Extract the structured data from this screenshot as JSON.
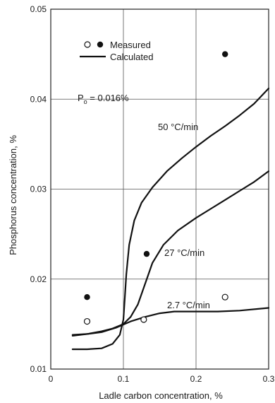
{
  "chart_data": {
    "type": "scatter",
    "title": "",
    "xlabel": "Ladle carbon concentration, %",
    "ylabel": "Phosphorus concentration, %",
    "xlim": [
      0,
      0.3
    ],
    "ylim": [
      0.01,
      0.05
    ],
    "x_ticks": [
      "0",
      "0.1",
      "0.2",
      "0.3"
    ],
    "y_ticks": [
      "0.01",
      "0.02",
      "0.03",
      "0.04",
      "0.05"
    ],
    "grid": true,
    "legend": {
      "placement": "top-left",
      "measured_label": "Measured",
      "calculated_label": "Calculated"
    },
    "annotation_p0": "P",
    "annotation_p0_subscript": "o",
    "annotation_p0_value": " = 0.016%",
    "curves": [
      {
        "label": "50 °C/min",
        "points": [
          [
            0.03,
            0.0122
          ],
          [
            0.05,
            0.0122
          ],
          [
            0.07,
            0.0123
          ],
          [
            0.085,
            0.0128
          ],
          [
            0.095,
            0.0138
          ],
          [
            0.1,
            0.0155
          ],
          [
            0.102,
            0.018
          ],
          [
            0.104,
            0.0205
          ],
          [
            0.108,
            0.0238
          ],
          [
            0.115,
            0.0265
          ],
          [
            0.125,
            0.0285
          ],
          [
            0.14,
            0.0302
          ],
          [
            0.16,
            0.032
          ],
          [
            0.18,
            0.0334
          ],
          [
            0.2,
            0.0347
          ],
          [
            0.22,
            0.0359
          ],
          [
            0.24,
            0.037
          ],
          [
            0.26,
            0.0382
          ],
          [
            0.28,
            0.0395
          ],
          [
            0.3,
            0.0412
          ]
        ]
      },
      {
        "label": "27 °C/min",
        "points": [
          [
            0.03,
            0.0137
          ],
          [
            0.05,
            0.0139
          ],
          [
            0.07,
            0.0142
          ],
          [
            0.085,
            0.0145
          ],
          [
            0.1,
            0.015
          ],
          [
            0.11,
            0.0158
          ],
          [
            0.12,
            0.0172
          ],
          [
            0.13,
            0.0195
          ],
          [
            0.14,
            0.0218
          ],
          [
            0.155,
            0.0238
          ],
          [
            0.175,
            0.0254
          ],
          [
            0.2,
            0.0268
          ],
          [
            0.22,
            0.0278
          ],
          [
            0.24,
            0.0288
          ],
          [
            0.26,
            0.0298
          ],
          [
            0.28,
            0.0308
          ],
          [
            0.3,
            0.032
          ]
        ]
      },
      {
        "label": "2.7 °C/min",
        "points": [
          [
            0.03,
            0.0138
          ],
          [
            0.05,
            0.0139
          ],
          [
            0.07,
            0.0141
          ],
          [
            0.09,
            0.0146
          ],
          [
            0.11,
            0.0153
          ],
          [
            0.13,
            0.0158
          ],
          [
            0.15,
            0.0162
          ],
          [
            0.17,
            0.0164
          ],
          [
            0.2,
            0.0164
          ],
          [
            0.23,
            0.0164
          ],
          [
            0.26,
            0.0165
          ],
          [
            0.3,
            0.0168
          ]
        ]
      }
    ],
    "measured_filled": [
      {
        "x": 0.05,
        "y": 0.018
      },
      {
        "x": 0.132,
        "y": 0.0228
      },
      {
        "x": 0.24,
        "y": 0.045
      }
    ],
    "measured_open": [
      {
        "x": 0.05,
        "y": 0.0153
      },
      {
        "x": 0.128,
        "y": 0.0155
      },
      {
        "x": 0.24,
        "y": 0.018
      }
    ]
  }
}
